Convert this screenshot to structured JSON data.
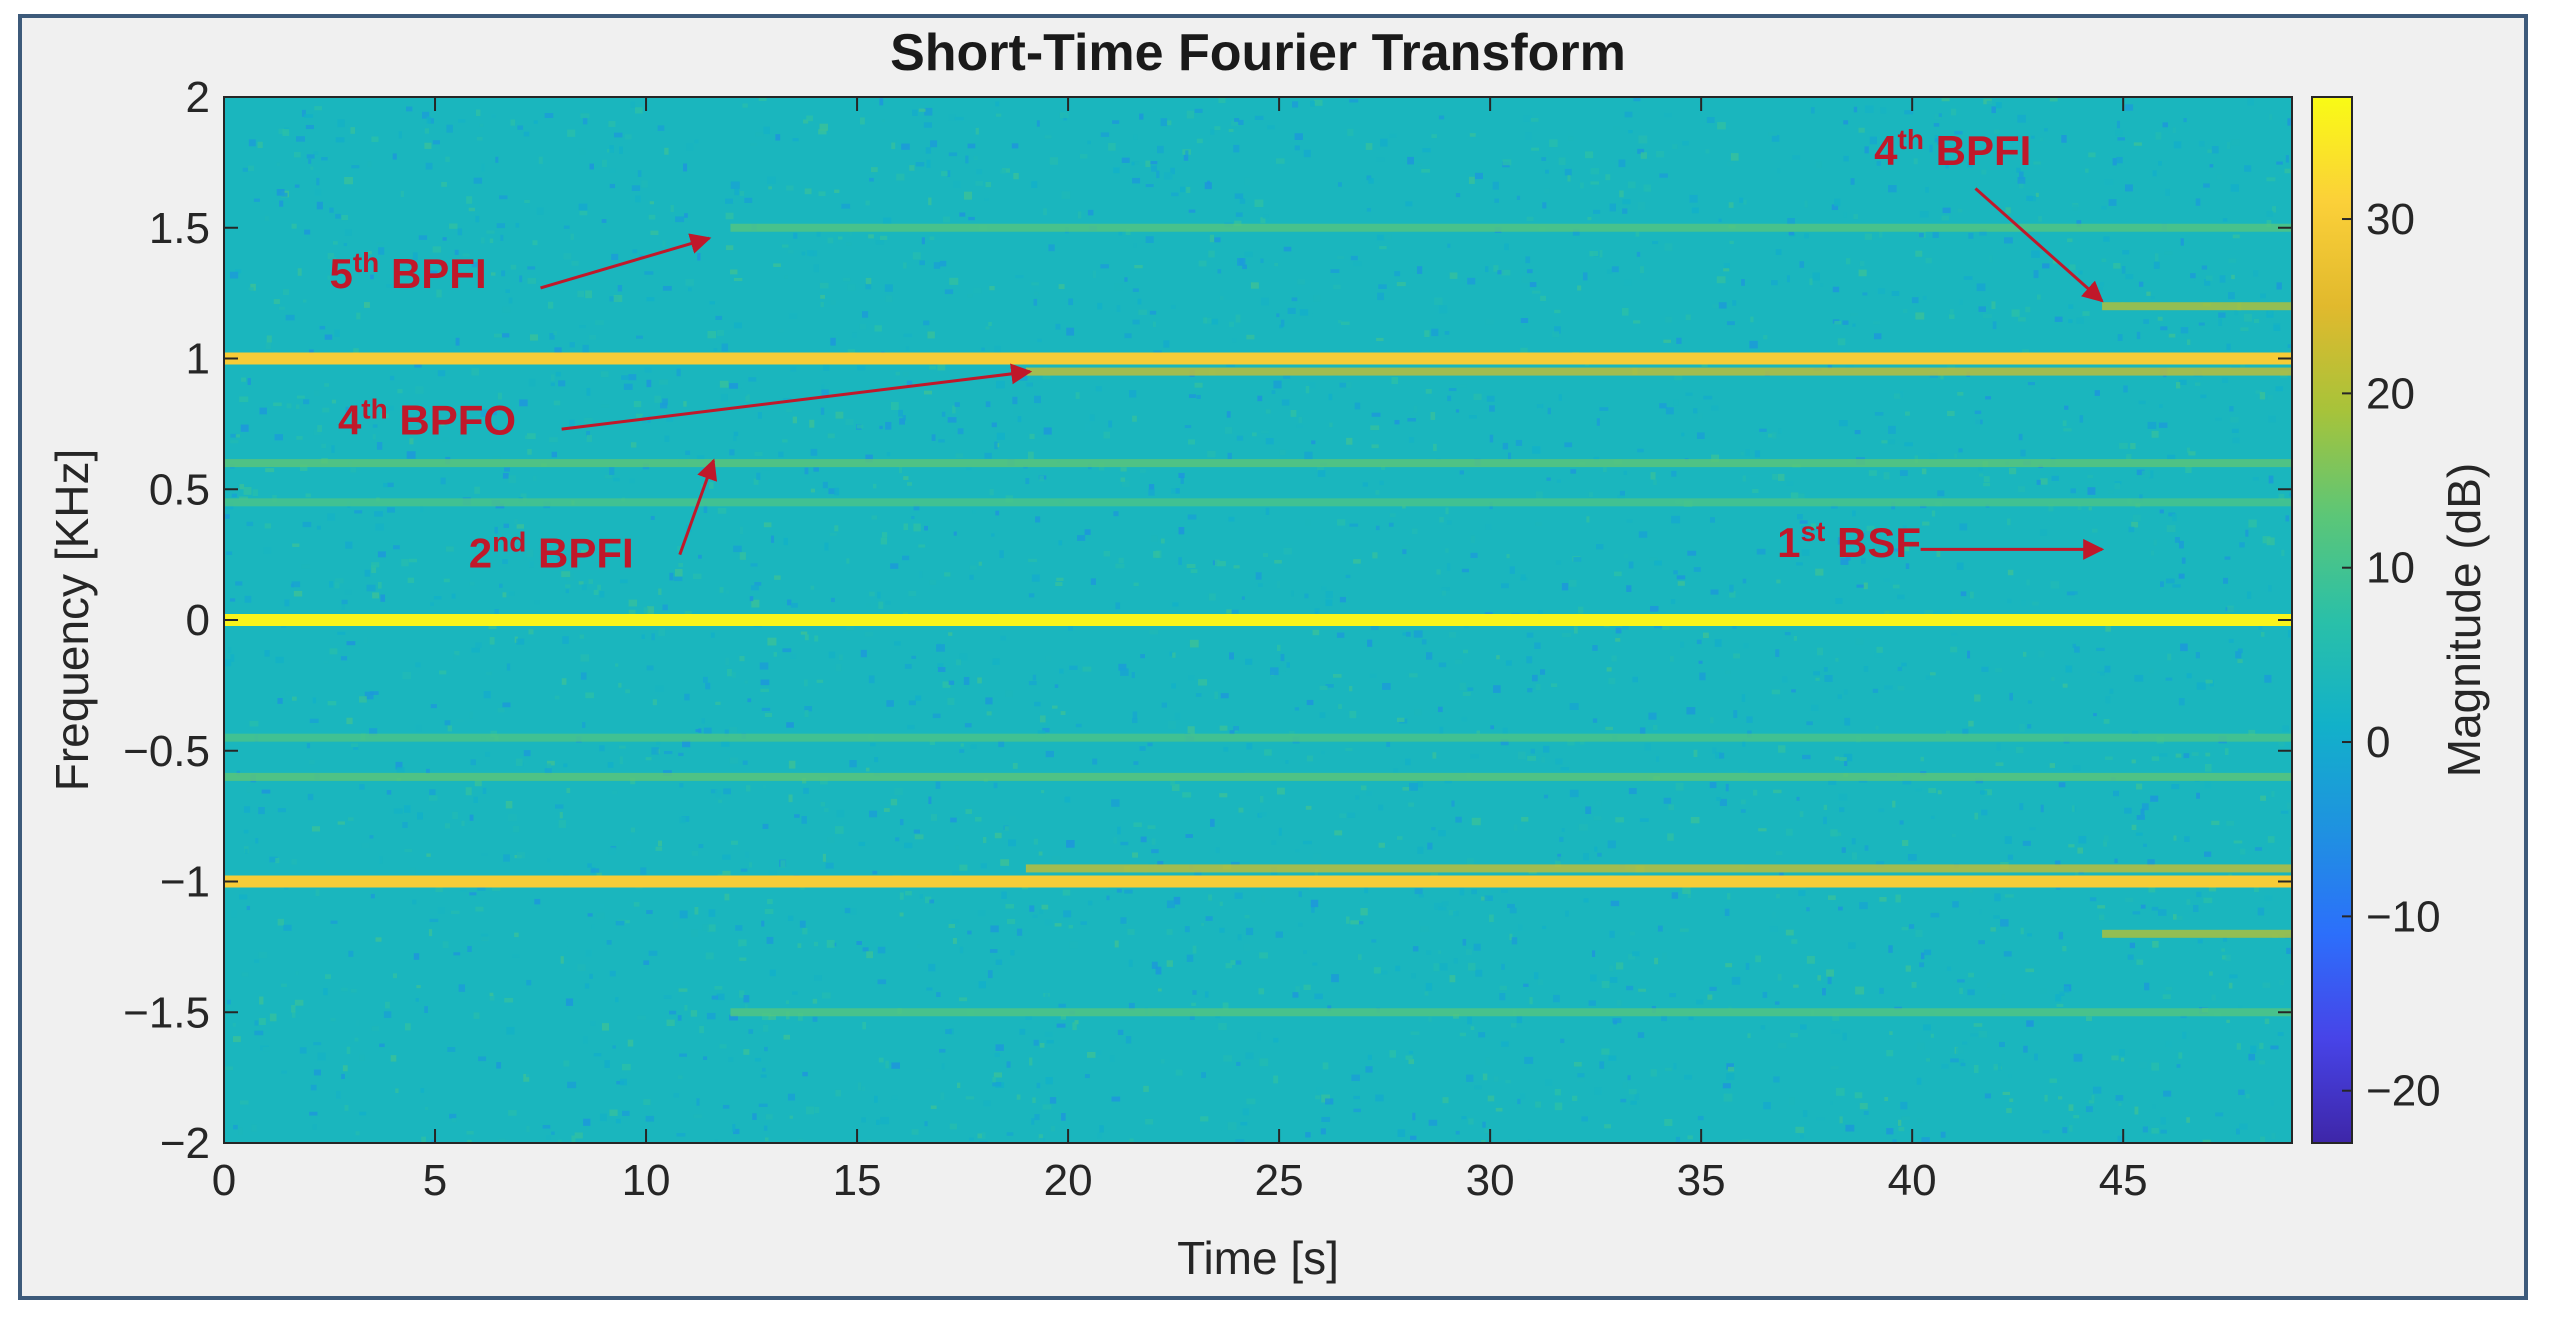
{
  "chart_data": {
    "type": "heatmap",
    "title": "Short-Time Fourier Transform",
    "xlabel": "Time [s]",
    "ylabel": "Frequency [KHz]",
    "colorbar_label": "Magnitude (dB)",
    "xlim": [
      0,
      49
    ],
    "ylim": [
      -2,
      2
    ],
    "clim": [
      -23,
      37
    ],
    "x_ticks": [
      0,
      5,
      10,
      15,
      20,
      25,
      30,
      35,
      40,
      45
    ],
    "x_tick_labels": [
      "0",
      "5",
      "10",
      "15",
      "20",
      "25",
      "30",
      "35",
      "40",
      "45"
    ],
    "y_ticks": [
      2,
      1.5,
      1,
      0.5,
      0,
      -0.5,
      -1,
      -1.5,
      -2
    ],
    "y_tick_labels": [
      "2",
      "1.5",
      "1",
      "0.5",
      "0",
      "−0.5",
      "−1",
      "−1.5",
      "−2"
    ],
    "colorbar_ticks": [
      30,
      20,
      10,
      0,
      -10,
      -20
    ],
    "colorbar_tick_labels": [
      "30",
      "20",
      "10",
      "0",
      "−10",
      "−20"
    ],
    "colormap": "parula",
    "grid": false,
    "background_magnitude_db": 3,
    "bands": [
      {
        "frequency": 0,
        "magnitude_db": 36,
        "t_start": 0,
        "t_end": 49
      },
      {
        "frequency": 1.0,
        "magnitude_db": 30,
        "t_start": 0,
        "t_end": 49
      },
      {
        "frequency": -1.0,
        "magnitude_db": 30,
        "t_start": 0,
        "t_end": 49
      },
      {
        "frequency": 0.95,
        "magnitude_db": 22,
        "t_start": 19,
        "t_end": 49
      },
      {
        "frequency": -0.95,
        "magnitude_db": 22,
        "t_start": 19,
        "t_end": 49
      },
      {
        "frequency": 1.5,
        "magnitude_db": 12,
        "t_start": 12,
        "t_end": 49
      },
      {
        "frequency": -1.5,
        "magnitude_db": 12,
        "t_start": 12,
        "t_end": 49
      },
      {
        "frequency": 0.6,
        "magnitude_db": 13,
        "t_start": 0,
        "t_end": 49
      },
      {
        "frequency": -0.6,
        "magnitude_db": 13,
        "t_start": 0,
        "t_end": 49
      },
      {
        "frequency": 0.45,
        "magnitude_db": 11,
        "t_start": 0,
        "t_end": 49
      },
      {
        "frequency": -0.45,
        "magnitude_db": 11,
        "t_start": 0,
        "t_end": 49
      },
      {
        "frequency": 1.2,
        "magnitude_db": 20,
        "t_start": 44.5,
        "t_end": 49
      },
      {
        "frequency": -1.2,
        "magnitude_db": 20,
        "t_start": 44.5,
        "t_end": 49
      }
    ],
    "annotations": [
      {
        "label": "5",
        "sup": "th",
        "rest": " BPFI",
        "text_at": [
          2.5,
          1.27
        ],
        "arrow_from": [
          7.5,
          1.27
        ],
        "arrow_to": [
          11.5,
          1.46
        ]
      },
      {
        "label": "4",
        "sup": "th",
        "rest": " BPFO",
        "text_at": [
          2.7,
          0.71
        ],
        "arrow_from": [
          8.0,
          0.73
        ],
        "arrow_to": [
          19.1,
          0.95
        ]
      },
      {
        "label": "2",
        "sup": "nd",
        "rest": " BPFI",
        "text_at": [
          5.8,
          0.2
        ],
        "arrow_from": [
          10.8,
          0.25
        ],
        "arrow_to": [
          11.6,
          0.61
        ]
      },
      {
        "label": "4",
        "sup": "th",
        "rest": " BPFI",
        "text_at": [
          39.1,
          1.74
        ],
        "arrow_from": [
          41.5,
          1.65
        ],
        "arrow_to": [
          44.5,
          1.22
        ]
      },
      {
        "label": "1",
        "sup": "st",
        "rest": " BSF",
        "text_at": [
          36.8,
          0.24
        ],
        "arrow_from": [
          40.2,
          0.27
        ],
        "arrow_to": [
          44.5,
          0.27
        ]
      }
    ]
  }
}
